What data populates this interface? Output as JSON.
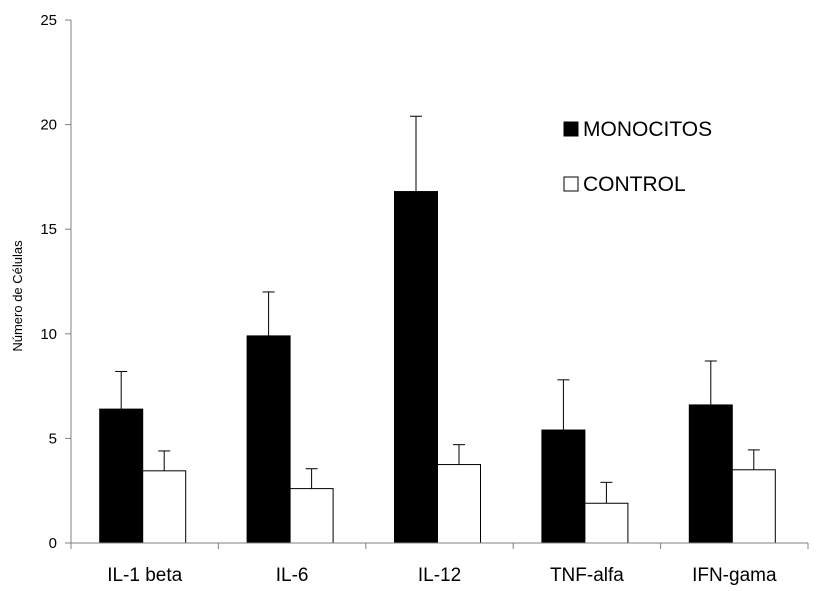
{
  "chart_data": {
    "type": "bar",
    "title": "",
    "xlabel": "",
    "ylabel": "Número de Células",
    "ylim": [
      0,
      25
    ],
    "yticks": [
      0,
      5,
      10,
      15,
      20,
      25
    ],
    "grid": false,
    "legend": "top-right",
    "categories": [
      "IL-1 beta",
      "IL-6",
      "IL-12",
      "TNF-alfa",
      "IFN-gama"
    ],
    "series": [
      {
        "name": "MONOCITOS",
        "color": "#000000",
        "values": [
          6.4,
          9.9,
          16.8,
          5.4,
          6.6
        ],
        "errors": [
          1.8,
          2.1,
          3.6,
          2.4,
          2.1
        ]
      },
      {
        "name": "CONTROL",
        "color": "#ffffff",
        "values": [
          3.45,
          2.6,
          3.75,
          1.9,
          3.5
        ],
        "errors": [
          0.95,
          0.95,
          0.95,
          1.0,
          0.95
        ]
      }
    ]
  }
}
